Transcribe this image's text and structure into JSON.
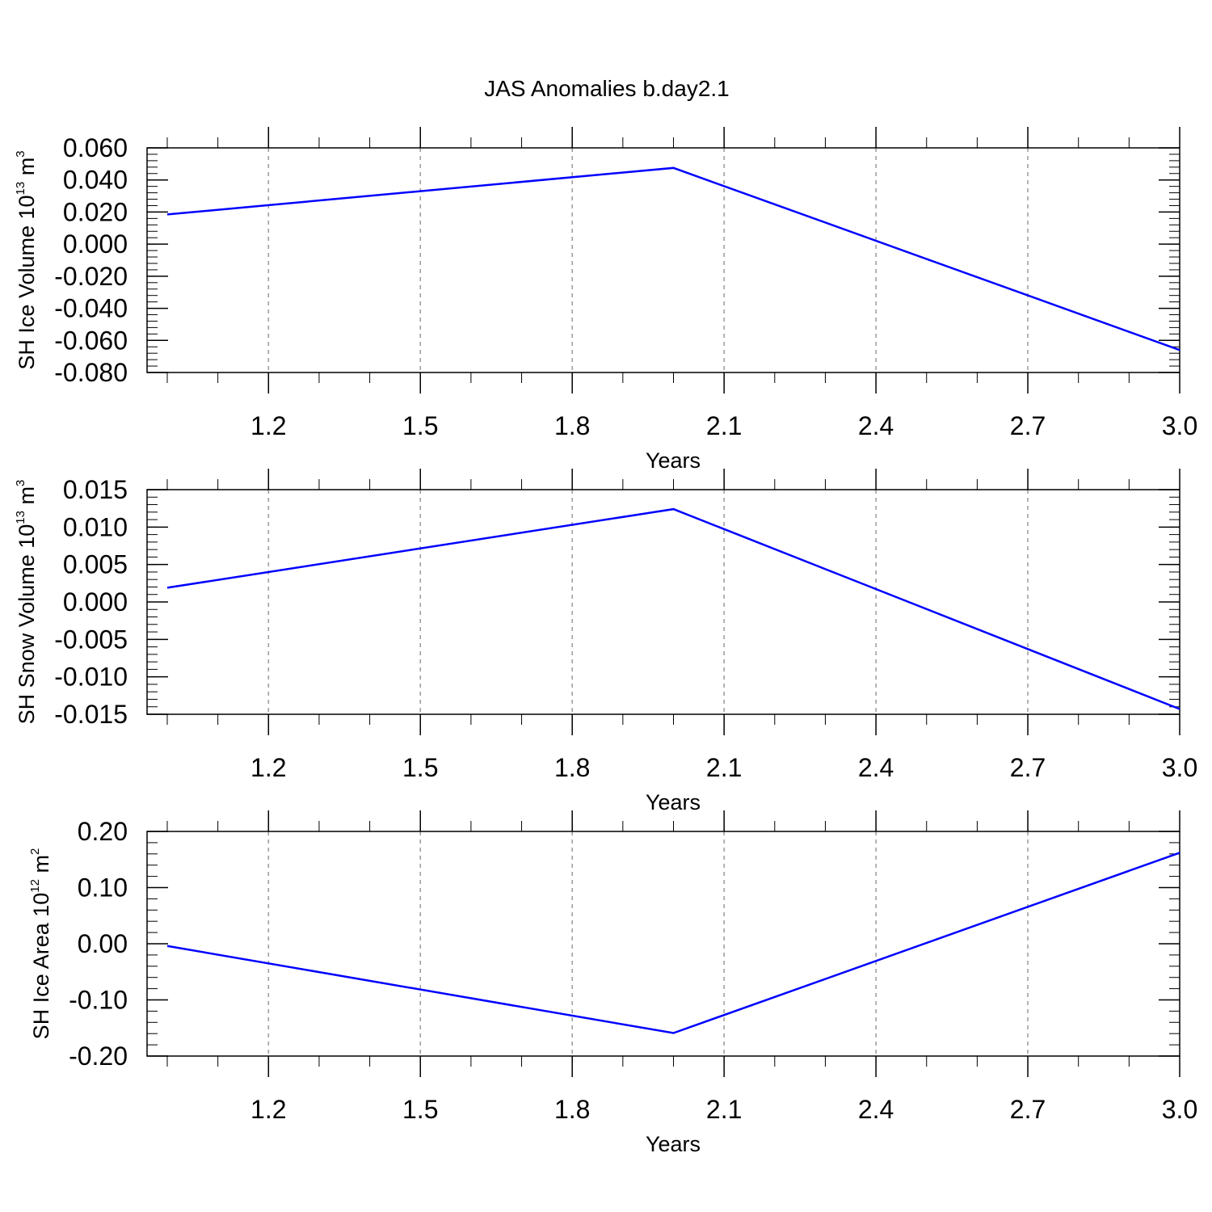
{
  "title": "JAS Anomalies b.day2.1",
  "line_color": "#0000ff",
  "grid": "vertical dashed at major x ticks",
  "chart_data": [
    {
      "type": "line",
      "ylabel": {
        "main": "SH Ice Volume 10",
        "exp": "13",
        "unit": " m",
        "unit_exp": "3"
      },
      "xlabel": "Years",
      "xlim": [
        1.0,
        3.0
      ],
      "ylim": [
        -0.08,
        0.06
      ],
      "xticks": [
        1.2,
        1.5,
        1.8,
        2.1,
        2.4,
        2.7,
        3.0
      ],
      "xtick_labels": [
        "1.2",
        "1.5",
        "1.8",
        "2.1",
        "2.4",
        "2.7",
        "3.0"
      ],
      "yticks": [
        0.06,
        0.04,
        0.02,
        0.0,
        -0.02,
        -0.04,
        -0.06,
        -0.08
      ],
      "ytick_labels": [
        "0.060",
        "0.040",
        "0.020",
        "0.000",
        "-0.020",
        "-0.040",
        "-0.060",
        "-0.080"
      ],
      "x": [
        1,
        2,
        3
      ],
      "y": [
        0.0185,
        0.0475,
        -0.066
      ]
    },
    {
      "type": "line",
      "ylabel": {
        "main": "SH Snow Volume 10",
        "exp": "13",
        "unit": " m",
        "unit_exp": "3"
      },
      "xlabel": "Years",
      "xlim": [
        1.0,
        3.0
      ],
      "ylim": [
        -0.015,
        0.015
      ],
      "xticks": [
        1.2,
        1.5,
        1.8,
        2.1,
        2.4,
        2.7,
        3.0
      ],
      "xtick_labels": [
        "1.2",
        "1.5",
        "1.8",
        "2.1",
        "2.4",
        "2.7",
        "3.0"
      ],
      "yticks": [
        0.015,
        0.01,
        0.005,
        0.0,
        -0.005,
        -0.01,
        -0.015
      ],
      "ytick_labels": [
        "0.015",
        "0.010",
        "0.005",
        "0.000",
        "-0.005",
        "-0.010",
        "-0.015"
      ],
      "x": [
        1,
        2,
        3
      ],
      "y": [
        0.0019,
        0.0124,
        -0.0143
      ]
    },
    {
      "type": "line",
      "ylabel": {
        "main": "SH Ice Area 10",
        "exp": "12",
        "unit": " m",
        "unit_exp": "2"
      },
      "xlabel": "Years",
      "xlim": [
        1.0,
        3.0
      ],
      "ylim": [
        -0.2,
        0.2
      ],
      "xticks": [
        1.2,
        1.5,
        1.8,
        2.1,
        2.4,
        2.7,
        3.0
      ],
      "xtick_labels": [
        "1.2",
        "1.5",
        "1.8",
        "2.1",
        "2.4",
        "2.7",
        "3.0"
      ],
      "yticks": [
        0.2,
        0.1,
        0.0,
        -0.1,
        -0.2
      ],
      "ytick_labels": [
        "0.20",
        "0.10",
        "0.00",
        "-0.10",
        "-0.20"
      ],
      "x": [
        1,
        2,
        3
      ],
      "y": [
        -0.004,
        -0.159,
        0.162
      ]
    }
  ]
}
